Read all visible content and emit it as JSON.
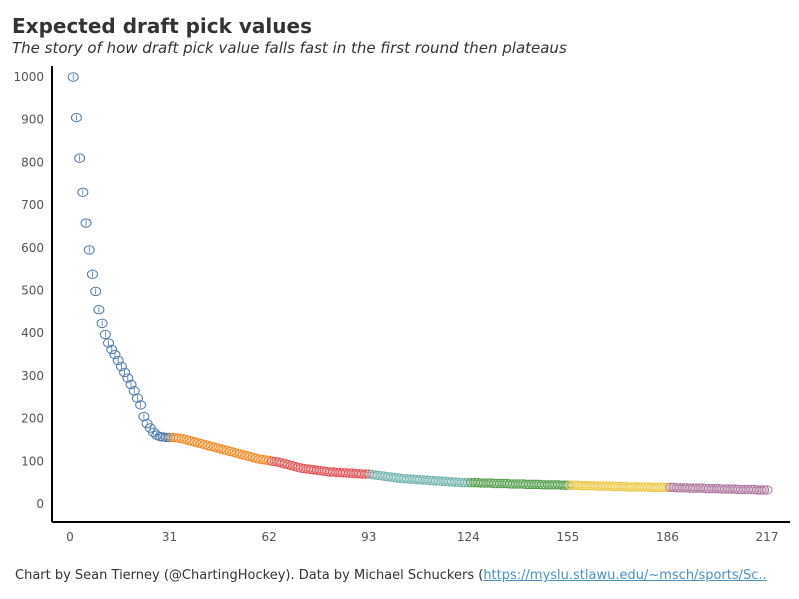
{
  "header": {
    "title": "Expected draft pick values",
    "subtitle": "The story of how draft pick value falls fast in the first round then plateaus"
  },
  "footer": {
    "credit": "Chart by Sean Tierney (@ChartingHockey). Data by Michael Schuckers (",
    "link_text": "https://myslu.stlawu.edu/~msch/sports/Sc.."
  },
  "chart_data": {
    "type": "scatter",
    "xlim": [
      0,
      217
    ],
    "ylim": [
      0,
      1000
    ],
    "x_ticks": [
      0,
      31,
      62,
      93,
      124,
      155,
      186,
      217
    ],
    "y_ticks": [
      0,
      100,
      200,
      300,
      400,
      500,
      600,
      700,
      800,
      900,
      1000
    ],
    "grid": false,
    "marker": "hollow-circle",
    "rounds": [
      {
        "round": 1,
        "color": "#4e79a7",
        "picks": [
          1,
          31
        ],
        "values": [
          1000,
          905,
          810,
          730,
          658,
          595,
          538,
          498,
          455,
          423,
          397,
          377,
          362,
          350,
          336,
          322,
          308,
          295,
          280,
          265,
          248,
          232,
          205,
          188,
          178,
          168,
          161,
          158,
          157,
          156,
          156
        ]
      },
      {
        "round": 2,
        "color": "#f28e2b",
        "picks": [
          32,
          62
        ],
        "values": [
          156,
          155,
          154,
          153,
          151,
          149,
          147,
          145,
          143,
          141,
          139,
          137,
          135,
          133,
          131,
          129,
          127,
          125,
          123,
          121,
          119,
          117,
          115,
          113,
          111,
          109,
          107,
          105,
          104,
          103,
          102
        ]
      },
      {
        "round": 3,
        "color": "#e15759",
        "picks": [
          63,
          93
        ],
        "values": [
          100,
          99,
          98,
          96,
          94,
          92,
          90,
          88,
          86,
          84,
          83,
          82,
          81,
          80,
          79,
          78,
          77,
          76,
          75,
          75,
          74,
          74,
          73,
          73,
          72,
          72,
          71,
          71,
          70,
          70,
          70
        ]
      },
      {
        "round": 4,
        "color": "#76b7b2",
        "picks": [
          94,
          124
        ],
        "values": [
          69,
          68,
          67,
          66,
          65,
          64,
          63,
          62,
          61,
          60,
          59,
          59,
          58,
          58,
          57,
          57,
          56,
          56,
          55,
          55,
          54,
          54,
          53,
          53,
          52,
          52,
          51,
          51,
          50,
          50,
          50
        ]
      },
      {
        "round": 5,
        "color": "#59a14f",
        "picks": [
          125,
          155
        ],
        "values": [
          50,
          50,
          50,
          49,
          49,
          49,
          49,
          48,
          48,
          48,
          48,
          48,
          47,
          47,
          47,
          47,
          47,
          46,
          46,
          46,
          46,
          46,
          45,
          45,
          45,
          45,
          45,
          45,
          44,
          44,
          44
        ]
      },
      {
        "round": 6,
        "color": "#edc948",
        "picks": [
          156,
          186
        ],
        "values": [
          44,
          44,
          44,
          43,
          43,
          43,
          43,
          43,
          42,
          42,
          42,
          42,
          42,
          41,
          41,
          41,
          41,
          41,
          40,
          40,
          40,
          40,
          40,
          40,
          40,
          39,
          39,
          39,
          39,
          39,
          39
        ]
      },
      {
        "round": 7,
        "color": "#b07aa1",
        "picks": [
          187,
          217
        ],
        "values": [
          39,
          39,
          38,
          38,
          38,
          38,
          37,
          37,
          37,
          37,
          37,
          36,
          36,
          36,
          36,
          36,
          35,
          35,
          35,
          35,
          35,
          34,
          34,
          34,
          34,
          34,
          34,
          33,
          33,
          33,
          33
        ]
      }
    ]
  }
}
